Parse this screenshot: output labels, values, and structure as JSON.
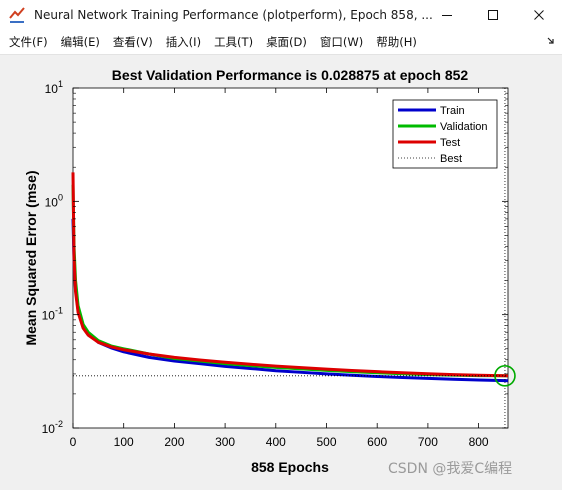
{
  "window": {
    "title": "Neural Network Training Performance (plotperform), Epoch 858, ...",
    "icon": "matlab-figure-icon"
  },
  "menu": {
    "items": [
      "文件(F)",
      "编辑(E)",
      "查看(V)",
      "插入(I)",
      "工具(T)",
      "桌面(D)",
      "窗口(W)",
      "帮助(H)"
    ]
  },
  "chart_data": {
    "type": "line",
    "title": "Best Validation Performance is 0.028875 at epoch 852",
    "xlabel": "858 Epochs",
    "ylabel": "Mean Squared Error  (mse)",
    "xlim": [
      0,
      858
    ],
    "ylim": [
      0.01,
      10
    ],
    "y_scale": "log",
    "x_ticks": [
      0,
      100,
      200,
      300,
      400,
      500,
      600,
      700,
      800
    ],
    "y_ticks": [
      {
        "base": "10",
        "exp": "-2",
        "value": 0.01
      },
      {
        "base": "10",
        "exp": "-1",
        "value": 0.1
      },
      {
        "base": "10",
        "exp": "0",
        "value": 1
      },
      {
        "base": "10",
        "exp": "1",
        "value": 10
      }
    ],
    "grid": false,
    "legend_position": "top-right",
    "best_epoch": 852,
    "best_value": 0.028875,
    "series": [
      {
        "name": "Train",
        "color": "#0000cc",
        "x": [
          0,
          2,
          5,
          10,
          20,
          30,
          50,
          75,
          100,
          150,
          200,
          250,
          300,
          350,
          400,
          450,
          500,
          550,
          600,
          650,
          700,
          750,
          800,
          852,
          858
        ],
        "y": [
          0.7,
          0.3,
          0.17,
          0.11,
          0.078,
          0.068,
          0.057,
          0.051,
          0.047,
          0.042,
          0.039,
          0.037,
          0.035,
          0.0335,
          0.032,
          0.031,
          0.03,
          0.0292,
          0.0285,
          0.0279,
          0.0274,
          0.0269,
          0.0265,
          0.0262,
          0.0261
        ]
      },
      {
        "name": "Validation",
        "color": "#00bb00",
        "x": [
          0,
          2,
          5,
          10,
          20,
          30,
          50,
          75,
          100,
          150,
          200,
          250,
          300,
          350,
          400,
          450,
          500,
          550,
          600,
          650,
          700,
          750,
          800,
          852,
          858
        ],
        "y": [
          1.4,
          0.4,
          0.2,
          0.12,
          0.082,
          0.07,
          0.059,
          0.053,
          0.05,
          0.045,
          0.041,
          0.039,
          0.037,
          0.0355,
          0.0343,
          0.0332,
          0.0322,
          0.0314,
          0.0307,
          0.0301,
          0.0296,
          0.0293,
          0.029,
          0.028875,
          0.0289
        ]
      },
      {
        "name": "Test",
        "color": "#dd0000",
        "x": [
          0,
          2,
          5,
          10,
          20,
          30,
          50,
          75,
          100,
          150,
          200,
          250,
          300,
          350,
          400,
          450,
          500,
          550,
          600,
          650,
          700,
          750,
          800,
          852,
          858
        ],
        "y": [
          1.8,
          0.32,
          0.16,
          0.105,
          0.076,
          0.066,
          0.057,
          0.052,
          0.049,
          0.045,
          0.042,
          0.0398,
          0.038,
          0.0365,
          0.0352,
          0.0341,
          0.0331,
          0.0322,
          0.0314,
          0.0307,
          0.0301,
          0.0296,
          0.0292,
          0.0289,
          0.0288
        ]
      }
    ],
    "best_line": {
      "name": "Best",
      "style": "dotted",
      "color": "#000000"
    }
  },
  "watermark": {
    "text": "CSDN @我爱C编程"
  }
}
